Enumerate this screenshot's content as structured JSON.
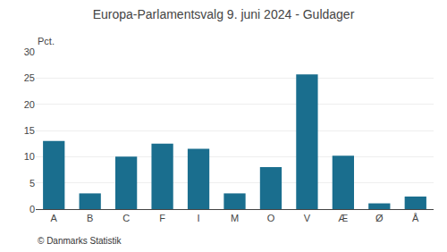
{
  "chart_data": {
    "type": "bar",
    "title": "Europa-Parlamentsvalg 9. juni 2024 - Guldager",
    "categories": [
      "A",
      "B",
      "C",
      "F",
      "I",
      "M",
      "O",
      "V",
      "Æ",
      "Ø",
      "Å"
    ],
    "values": [
      13.0,
      3.0,
      10.0,
      12.5,
      11.5,
      3.0,
      8.0,
      25.7,
      10.2,
      1.1,
      2.4
    ],
    "color": "#1a6e8e",
    "ylabel": "Pct.",
    "annotations": [
      "© Danmarks Statistik"
    ],
    "ylim": [
      0,
      30
    ],
    "yticks": [
      0,
      5,
      10,
      15,
      20,
      25,
      30
    ],
    "grid": true
  }
}
